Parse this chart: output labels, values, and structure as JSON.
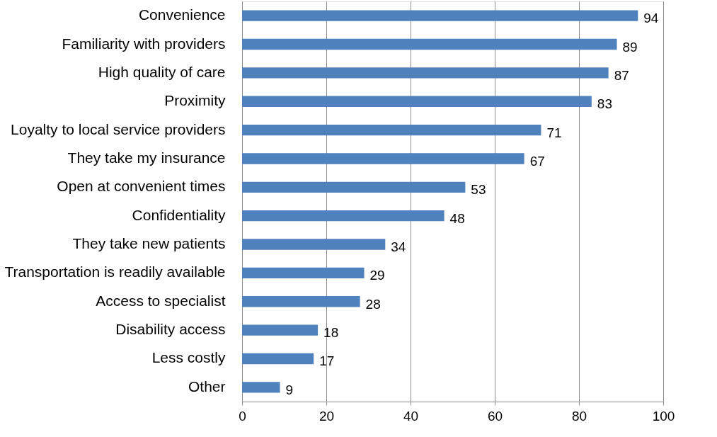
{
  "chart_data": {
    "type": "bar",
    "orientation": "horizontal",
    "categories": [
      "Convenience",
      "Familiarity with providers",
      "High quality of care",
      "Proximity",
      "Loyalty to local service providers",
      "They take my insurance",
      "Open at convenient times",
      "Confidentiality",
      "They take new patients",
      "Transportation is readily available",
      "Access to specialist",
      "Disability access",
      "Less costly",
      "Other"
    ],
    "values": [
      94,
      89,
      87,
      83,
      71,
      67,
      53,
      48,
      34,
      29,
      28,
      18,
      17,
      9
    ],
    "color": "#4f81bd",
    "xlim": [
      0,
      100
    ],
    "xticks": [
      0,
      20,
      40,
      60,
      80,
      100
    ],
    "grid": "x",
    "data_labels": true
  }
}
